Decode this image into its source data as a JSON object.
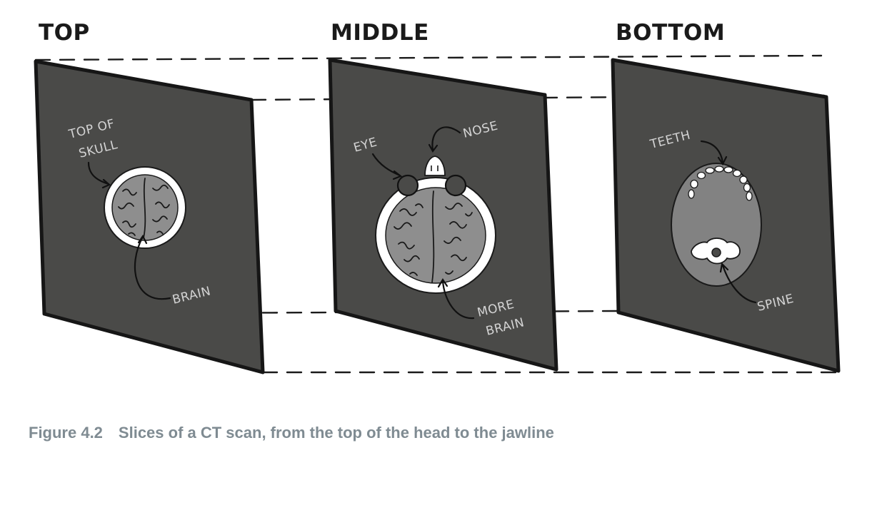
{
  "headings": {
    "top": "TOP",
    "middle": "MIDDLE",
    "bottom": "BOTTOM"
  },
  "annotations": {
    "top_of_skull_line1": "TOP OF",
    "top_of_skull_line2": "SKULL",
    "brain": "BRAIN",
    "eye": "EYE",
    "nose": "NOSE",
    "more_brain_line1": "MORE",
    "more_brain_line2": "BRAIN",
    "teeth": "TEETH",
    "spine": "SPINE"
  },
  "caption": {
    "number": "Figure 4.2",
    "text": "Slices of a CT scan, from the top of the head to the jawline"
  },
  "colors": {
    "panel": "#4a4a48",
    "caption": "#7f8b92",
    "brain": "#8e8e8e",
    "bone": "#ffffff"
  }
}
